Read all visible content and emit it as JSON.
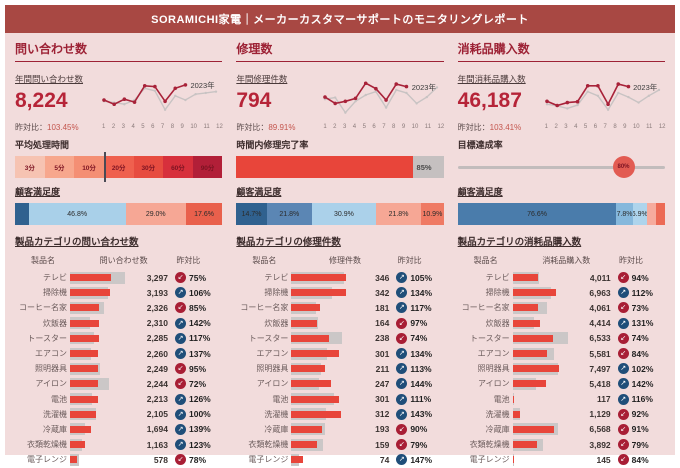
{
  "header": {
    "title": "SORAMICHI家電｜メーカーカスタマーサポートのモニタリングレポート"
  },
  "icons": {
    "up": "↗",
    "down": "↙"
  },
  "columns": [
    {
      "section_title": "問い合わせ数",
      "kpi": {
        "label": "年間問い合わせ数",
        "value": "8,224",
        "yoy_label": "昨対比：",
        "yoy_value": "103.45%"
      },
      "sparkline": {
        "year_label": "2023年",
        "months": [
          "1",
          "2",
          "3",
          "4",
          "5",
          "6",
          "7",
          "8",
          "9",
          "10",
          "11",
          "12"
        ],
        "current": [
          38,
          28,
          40,
          33,
          72,
          70,
          35,
          66,
          74
        ],
        "previous": [
          35,
          32,
          28,
          38,
          66,
          60,
          15,
          48,
          38,
          52,
          55,
          58
        ]
      },
      "metric": {
        "type": "segments",
        "title": "平均処理時間",
        "marker_after": 3,
        "segments": [
          {
            "label": "3分",
            "color": "#f6c3b2"
          },
          {
            "label": "5分",
            "color": "#f7a78d"
          },
          {
            "label": "10分",
            "color": "#f48f74"
          },
          {
            "label": "20分",
            "color": "#ef604e"
          },
          {
            "label": "30分",
            "color": "#e74c40"
          },
          {
            "label": "60分",
            "color": "#d7303c"
          },
          {
            "label": "90分",
            "color": "#b21f38"
          }
        ]
      },
      "satisfaction": {
        "title": "顧客満足度",
        "segments": [
          {
            "label": "",
            "pct": 6.6,
            "color": "#30618f"
          },
          {
            "label": "46.8%",
            "pct": 46.8,
            "color": "#a9d0e9"
          },
          {
            "label": "29.0%",
            "pct": 29.0,
            "color": "#f6a795"
          },
          {
            "label": "17.6%",
            "pct": 17.6,
            "color": "#e9604c"
          }
        ]
      },
      "table": {
        "title": "製品カテゴリの問い合わせ数",
        "col_name": "製品名",
        "col_value": "問い合わせ数",
        "col_yoy": "昨対比",
        "rows": [
          {
            "name": "テレビ",
            "value": "3,297",
            "v": 3297,
            "yoy": "75%",
            "yoy_pct": 75,
            "dir": "down"
          },
          {
            "name": "掃除機",
            "value": "3,193",
            "v": 3193,
            "yoy": "106%",
            "yoy_pct": 106,
            "dir": "up"
          },
          {
            "name": "コーヒー名家",
            "value": "2,326",
            "v": 2326,
            "yoy": "85%",
            "yoy_pct": 85,
            "dir": "down"
          },
          {
            "name": "炊飯器",
            "value": "2,310",
            "v": 2310,
            "yoy": "142%",
            "yoy_pct": 142,
            "dir": "up"
          },
          {
            "name": "トースター",
            "value": "2,285",
            "v": 2285,
            "yoy": "117%",
            "yoy_pct": 117,
            "dir": "up"
          },
          {
            "name": "エアコン",
            "value": "2,260",
            "v": 2260,
            "yoy": "137%",
            "yoy_pct": 137,
            "dir": "up"
          },
          {
            "name": "照明器具",
            "value": "2,249",
            "v": 2249,
            "yoy": "95%",
            "yoy_pct": 95,
            "dir": "down"
          },
          {
            "name": "アイロン",
            "value": "2,244",
            "v": 2244,
            "yoy": "72%",
            "yoy_pct": 72,
            "dir": "down"
          },
          {
            "name": "電池",
            "value": "2,213",
            "v": 2213,
            "yoy": "126%",
            "yoy_pct": 126,
            "dir": "up"
          },
          {
            "name": "洗濯機",
            "value": "2,105",
            "v": 2105,
            "yoy": "100%",
            "yoy_pct": 100,
            "dir": "up"
          },
          {
            "name": "冷蔵庫",
            "value": "1,694",
            "v": 1694,
            "yoy": "139%",
            "yoy_pct": 139,
            "dir": "up"
          },
          {
            "name": "衣類乾燥機",
            "value": "1,163",
            "v": 1163,
            "yoy": "123%",
            "yoy_pct": 123,
            "dir": "up"
          },
          {
            "name": "電子レンジ",
            "value": "578",
            "v": 578,
            "yoy": "78%",
            "yoy_pct": 78,
            "dir": "down"
          }
        ]
      }
    },
    {
      "section_title": "修理数",
      "kpi": {
        "label": "年間修理件数",
        "value": "794",
        "yoy_label": "昨対比：",
        "yoy_value": "89.91%"
      },
      "sparkline": {
        "year_label": "2023年",
        "months": [
          "1",
          "2",
          "3",
          "4",
          "5",
          "6",
          "7",
          "8",
          "9",
          "10",
          "11",
          "12"
        ],
        "current": [
          45,
          30,
          35,
          42,
          78,
          65,
          38,
          76,
          70
        ],
        "previous": [
          40,
          44,
          8,
          35,
          50,
          58,
          20,
          62,
          55,
          30,
          45,
          68
        ]
      },
      "metric": {
        "type": "progress",
        "title": "時間内修理完了率",
        "pct": 85,
        "label": "85%"
      },
      "satisfaction": {
        "title": "顧客満足度",
        "segments": [
          {
            "label": "14.7%",
            "pct": 14.7,
            "color": "#30618f"
          },
          {
            "label": "21.8%",
            "pct": 21.8,
            "color": "#5b86b4"
          },
          {
            "label": "30.9%",
            "pct": 30.9,
            "color": "#abd1ea"
          },
          {
            "label": "21.8%",
            "pct": 21.8,
            "color": "#f6a795"
          },
          {
            "label": "10.9%",
            "pct": 10.9,
            "color": "#ef7a64"
          }
        ]
      },
      "table": {
        "title": "製品カテゴリの修理件数",
        "col_name": "製品名",
        "col_value": "修理件数",
        "col_yoy": "昨対比",
        "rows": [
          {
            "name": "テレビ",
            "value": "346",
            "v": 346,
            "yoy": "105%",
            "yoy_pct": 105,
            "dir": "up"
          },
          {
            "name": "掃除機",
            "value": "342",
            "v": 342,
            "yoy": "134%",
            "yoy_pct": 134,
            "dir": "up"
          },
          {
            "name": "コーヒー名家",
            "value": "181",
            "v": 181,
            "yoy": "117%",
            "yoy_pct": 117,
            "dir": "up"
          },
          {
            "name": "炊飯器",
            "value": "164",
            "v": 164,
            "yoy": "97%",
            "yoy_pct": 97,
            "dir": "down"
          },
          {
            "name": "トースター",
            "value": "238",
            "v": 238,
            "yoy": "74%",
            "yoy_pct": 74,
            "dir": "down"
          },
          {
            "name": "エアコン",
            "value": "301",
            "v": 301,
            "yoy": "134%",
            "yoy_pct": 134,
            "dir": "up"
          },
          {
            "name": "照明器具",
            "value": "211",
            "v": 211,
            "yoy": "113%",
            "yoy_pct": 113,
            "dir": "up"
          },
          {
            "name": "アイロン",
            "value": "247",
            "v": 247,
            "yoy": "144%",
            "yoy_pct": 144,
            "dir": "up"
          },
          {
            "name": "電池",
            "value": "301",
            "v": 301,
            "yoy": "111%",
            "yoy_pct": 111,
            "dir": "up"
          },
          {
            "name": "洗濯機",
            "value": "312",
            "v": 312,
            "yoy": "143%",
            "yoy_pct": 143,
            "dir": "up"
          },
          {
            "name": "冷蔵庫",
            "value": "193",
            "v": 193,
            "yoy": "90%",
            "yoy_pct": 90,
            "dir": "down"
          },
          {
            "name": "衣類乾燥機",
            "value": "159",
            "v": 159,
            "yoy": "79%",
            "yoy_pct": 79,
            "dir": "down"
          },
          {
            "name": "電子レンジ",
            "value": "74",
            "v": 74,
            "yoy": "147%",
            "yoy_pct": 147,
            "dir": "up"
          }
        ]
      }
    },
    {
      "section_title": "消耗品購入数",
      "kpi": {
        "label": "年間消耗品購入数",
        "value": "46,187",
        "yoy_label": "昨対比：",
        "yoy_value": "103.41%"
      },
      "sparkline": {
        "year_label": "2023年",
        "months": [
          "1",
          "2",
          "3",
          "4",
          "5",
          "6",
          "7",
          "8",
          "9",
          "10",
          "11",
          "12"
        ],
        "current": [
          35,
          25,
          32,
          34,
          72,
          72,
          28,
          76,
          70
        ],
        "previous": [
          28,
          24,
          18,
          26,
          58,
          48,
          15,
          55,
          45,
          32,
          48,
          62
        ]
      },
      "metric": {
        "type": "gauge",
        "title": "目標達成率",
        "pct": 80,
        "label": "80%"
      },
      "satisfaction": {
        "title": "顧客満足度",
        "segments": [
          {
            "label": "76.6%",
            "pct": 76.6,
            "color": "#4a7cab"
          },
          {
            "label": "7.8%",
            "pct": 7.8,
            "color": "#86b8dc"
          },
          {
            "label": "6.9%",
            "pct": 6.9,
            "color": "#aed4ec"
          },
          {
            "label": "",
            "pct": 4.4,
            "color": "#f6ab9d"
          },
          {
            "label": "",
            "pct": 4.3,
            "color": "#ec6a55"
          }
        ]
      },
      "table": {
        "title": "製品カテゴリの消耗品購入数",
        "col_name": "製品名",
        "col_value": "消耗品購入数",
        "col_yoy": "昨対比",
        "rows": [
          {
            "name": "テレビ",
            "value": "4,011",
            "v": 4011,
            "yoy": "94%",
            "yoy_pct": 94,
            "dir": "down"
          },
          {
            "name": "掃除機",
            "value": "6,963",
            "v": 6963,
            "yoy": "112%",
            "yoy_pct": 112,
            "dir": "up"
          },
          {
            "name": "コーヒー名家",
            "value": "4,061",
            "v": 4061,
            "yoy": "73%",
            "yoy_pct": 73,
            "dir": "down"
          },
          {
            "name": "炊飯器",
            "value": "4,414",
            "v": 4414,
            "yoy": "131%",
            "yoy_pct": 131,
            "dir": "up"
          },
          {
            "name": "トースター",
            "value": "6,533",
            "v": 6533,
            "yoy": "74%",
            "yoy_pct": 74,
            "dir": "down"
          },
          {
            "name": "エアコン",
            "value": "5,581",
            "v": 5581,
            "yoy": "84%",
            "yoy_pct": 84,
            "dir": "down"
          },
          {
            "name": "照明器具",
            "value": "7,497",
            "v": 7497,
            "yoy": "102%",
            "yoy_pct": 102,
            "dir": "up"
          },
          {
            "name": "アイロン",
            "value": "5,418",
            "v": 5418,
            "yoy": "142%",
            "yoy_pct": 142,
            "dir": "up"
          },
          {
            "name": "電池",
            "value": "117",
            "v": 117,
            "yoy": "116%",
            "yoy_pct": 116,
            "dir": "up"
          },
          {
            "name": "洗濯機",
            "value": "1,129",
            "v": 1129,
            "yoy": "92%",
            "yoy_pct": 92,
            "dir": "down"
          },
          {
            "name": "冷蔵庫",
            "value": "6,568",
            "v": 6568,
            "yoy": "91%",
            "yoy_pct": 91,
            "dir": "down"
          },
          {
            "name": "衣類乾燥機",
            "value": "3,892",
            "v": 3892,
            "yoy": "79%",
            "yoy_pct": 79,
            "dir": "down"
          },
          {
            "name": "電子レンジ",
            "value": "145",
            "v": 145,
            "yoy": "84%",
            "yoy_pct": 84,
            "dir": "down"
          }
        ]
      }
    }
  ],
  "colors": {
    "header_bg": "#a84843",
    "canvas_bg": "#f2dcdc",
    "accent_red": "#9d2235",
    "kpi_value": "#b62438",
    "bar_current": "#e8453a",
    "bar_previous": "#cbc7c7",
    "badge_up": "#1f4e79",
    "badge_down": "#a81e35",
    "line_current": "#a82239",
    "line_previous": "#c8c3c3"
  }
}
